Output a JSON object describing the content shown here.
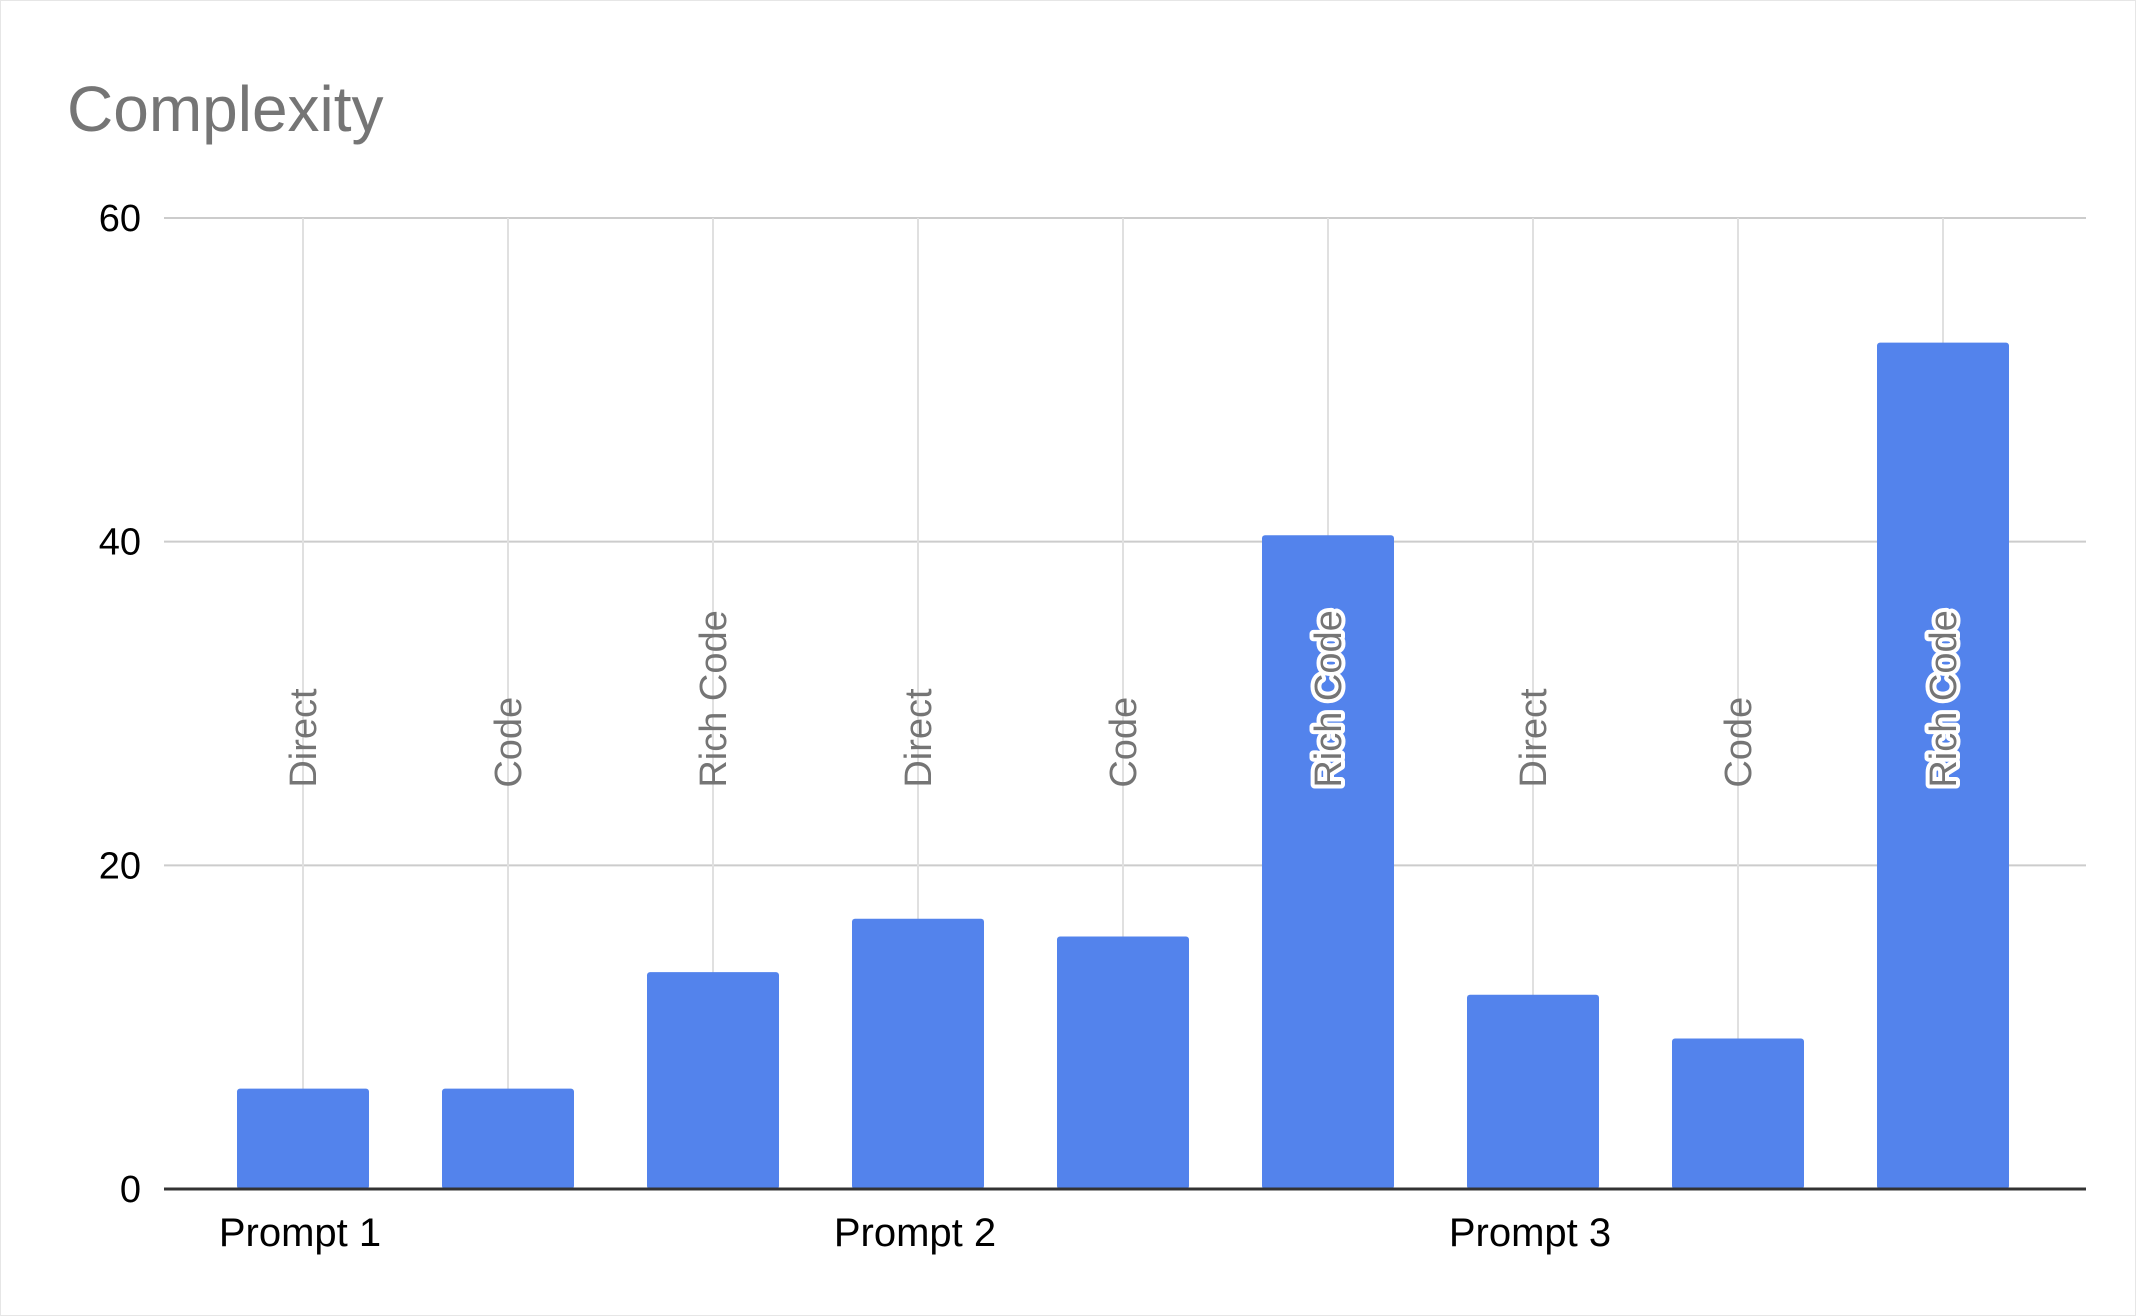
{
  "chart_data": {
    "type": "bar",
    "title": "Complexity",
    "xlabel": "",
    "ylabel": "",
    "ylim": [
      0,
      60
    ],
    "yticks": [
      0,
      20,
      40,
      60
    ],
    "grid": true,
    "legend": "none",
    "groups": [
      "Prompt 1",
      "Prompt 2",
      "Prompt 3"
    ],
    "categories": [
      "Direct",
      "Code",
      "Rich Code",
      "Direct",
      "Code",
      "Rich Code",
      "Direct",
      "Code",
      "Rich Code"
    ],
    "values": [
      6.2,
      6.2,
      13.4,
      16.7,
      15.6,
      40.4,
      12.0,
      9.3,
      52.3
    ],
    "bar_color": "#5383EC",
    "grid_color": "#E0E0E0",
    "label_color": "#757575"
  }
}
